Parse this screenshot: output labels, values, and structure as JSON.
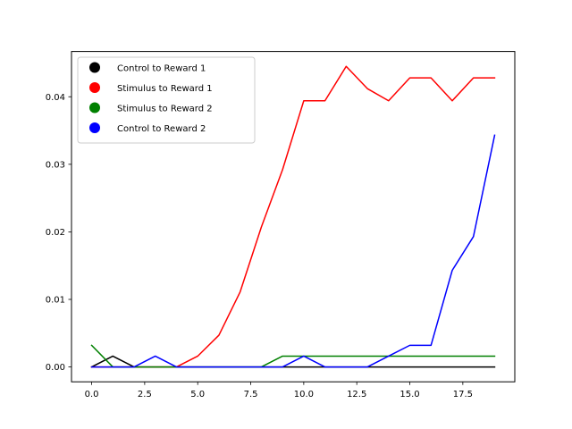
{
  "chart_data": {
    "type": "line",
    "title": "",
    "xlabel": "",
    "ylabel": "",
    "grid": false,
    "legend_position": "upper-left",
    "xlim": [
      -0.95,
      19.95
    ],
    "ylim": [
      -0.0022,
      0.0467
    ],
    "x_ticks": [
      0.0,
      2.5,
      5.0,
      7.5,
      10.0,
      12.5,
      15.0,
      17.5
    ],
    "x_tick_labels": [
      "0.0",
      "2.5",
      "5.0",
      "7.5",
      "10.0",
      "12.5",
      "15.0",
      "17.5"
    ],
    "y_ticks": [
      0.0,
      0.01,
      0.02,
      0.03,
      0.04
    ],
    "y_tick_labels": [
      "0.00",
      "0.01",
      "0.02",
      "0.03",
      "0.04"
    ],
    "x": [
      0,
      1,
      2,
      3,
      4,
      5,
      6,
      7,
      8,
      9,
      10,
      11,
      12,
      13,
      14,
      15,
      16,
      17,
      18,
      19
    ],
    "series": [
      {
        "name": "Control to Reward 1",
        "color": "#000000",
        "values": [
          0,
          0.0016,
          0,
          0,
          0,
          0,
          0,
          0,
          0,
          0,
          0,
          0,
          0,
          0,
          0,
          0,
          0,
          0,
          0,
          0
        ]
      },
      {
        "name": "Stimulus to Reward 1",
        "color": "#ff0000",
        "values": [
          0,
          0,
          0,
          0,
          0,
          0.0016,
          0.0047,
          0.0111,
          0.0207,
          0.0292,
          0.0394,
          0.0394,
          0.0445,
          0.0412,
          0.0394,
          0.0428,
          0.0428,
          0.0394,
          0.0428,
          0.0428
        ]
      },
      {
        "name": "Stimulus to Reward 2",
        "color": "#008000",
        "values": [
          0.0032,
          0,
          0,
          0,
          0,
          0,
          0,
          0,
          0,
          0.0016,
          0.0016,
          0.0016,
          0.0016,
          0.0016,
          0.0016,
          0.0016,
          0.0016,
          0.0016,
          0.0016,
          0.0016
        ]
      },
      {
        "name": "Control to Reward 2",
        "color": "#0000ff",
        "values": [
          0,
          0,
          0,
          0.0016,
          0,
          0,
          0,
          0,
          0,
          0,
          0.0016,
          0,
          0,
          0,
          0.0016,
          0.0032,
          0.0032,
          0.0143,
          0.0193,
          0.0343
        ]
      }
    ]
  }
}
